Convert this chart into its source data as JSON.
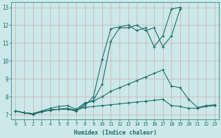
{
  "xlabel": "Humidex (Indice chaleur)",
  "background_color": "#cce8e8",
  "line_color": "#1a6b6b",
  "xlim": [
    -0.5,
    23.5
  ],
  "ylim": [
    6.75,
    13.3
  ],
  "yticks": [
    7,
    8,
    9,
    10,
    11,
    12,
    13
  ],
  "xticks": [
    0,
    1,
    2,
    3,
    4,
    5,
    6,
    7,
    8,
    9,
    10,
    11,
    12,
    13,
    14,
    15,
    16,
    17,
    18,
    19,
    20,
    21,
    22,
    23
  ],
  "series": [
    {
      "x": [
        0,
        1,
        2,
        3,
        4,
        5,
        6,
        7,
        8,
        9,
        10,
        11,
        12,
        13,
        14,
        15,
        16,
        17,
        18,
        19
      ],
      "y": [
        7.2,
        7.1,
        7.05,
        7.15,
        7.25,
        7.3,
        7.3,
        7.2,
        7.5,
        8.0,
        10.1,
        11.8,
        11.9,
        12.0,
        11.7,
        11.85,
        10.8,
        11.4,
        12.9,
        13.0
      ]
    },
    {
      "x": [
        0,
        1,
        2,
        3,
        4,
        5,
        6,
        7,
        8,
        9,
        10,
        11,
        12,
        13,
        14,
        15,
        16,
        17,
        18,
        19
      ],
      "y": [
        7.2,
        7.1,
        7.05,
        7.15,
        7.25,
        7.3,
        7.3,
        7.2,
        7.6,
        7.8,
        8.7,
        11.1,
        11.85,
        11.85,
        12.0,
        11.7,
        11.85,
        10.8,
        11.4,
        12.9
      ]
    },
    {
      "x": [
        0,
        1,
        2,
        3,
        4,
        5,
        6,
        7,
        8,
        9,
        10,
        11,
        12,
        13,
        14,
        15,
        16,
        17,
        18,
        19,
        20,
        21,
        22,
        23
      ],
      "y": [
        7.2,
        7.1,
        7.05,
        7.2,
        7.35,
        7.45,
        7.5,
        7.3,
        7.65,
        7.75,
        8.0,
        8.3,
        8.5,
        8.7,
        8.9,
        9.1,
        9.3,
        9.5,
        8.6,
        8.5,
        7.85,
        7.4,
        7.5,
        7.55
      ]
    },
    {
      "x": [
        0,
        1,
        2,
        3,
        4,
        5,
        6,
        7,
        8,
        9,
        10,
        11,
        12,
        13,
        14,
        15,
        16,
        17,
        18,
        19,
        20,
        21,
        22,
        23
      ],
      "y": [
        7.2,
        7.1,
        7.0,
        7.15,
        7.25,
        7.3,
        7.35,
        7.25,
        7.4,
        7.45,
        7.5,
        7.55,
        7.6,
        7.65,
        7.7,
        7.75,
        7.8,
        7.85,
        7.5,
        7.45,
        7.35,
        7.35,
        7.45,
        7.5
      ]
    }
  ]
}
